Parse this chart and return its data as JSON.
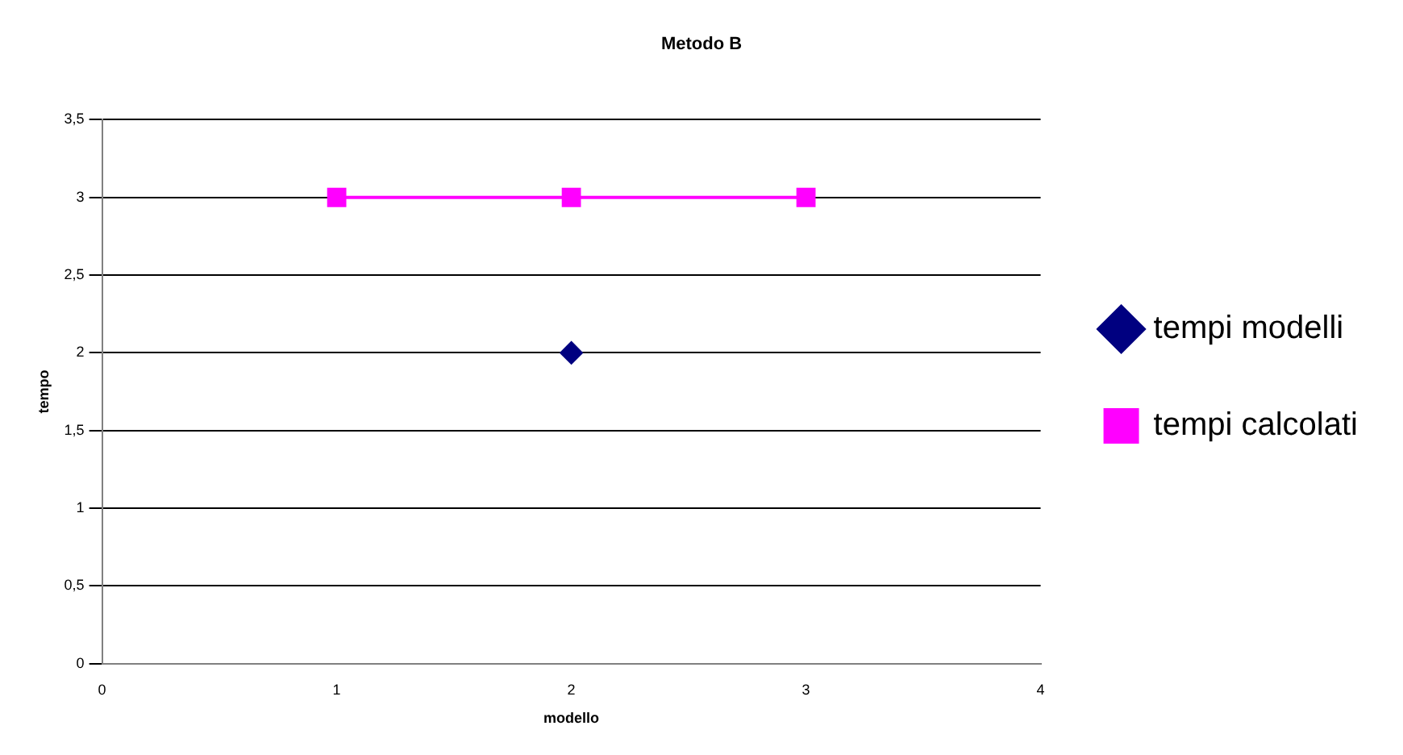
{
  "chart_data": {
    "type": "scatter",
    "title": "Metodo B",
    "xlabel": "modello",
    "ylabel": "tempo",
    "xlim": [
      0,
      4
    ],
    "xticks": [
      0,
      1,
      2,
      3,
      4
    ],
    "ylim": [
      0,
      3.5
    ],
    "yticks": [
      0,
      {
        "value": 0.5,
        "label": "0,5"
      },
      1,
      {
        "value": 1.5,
        "label": "1,5"
      },
      2,
      {
        "value": 2.5,
        "label": "2,5"
      },
      3,
      {
        "value": 3.5,
        "label": "3,5"
      }
    ],
    "grid": "y",
    "legend": "right",
    "series": [
      {
        "name": "tempi modelli",
        "type": "scatter",
        "color": "#000080",
        "marker": "diamond",
        "x": [
          2
        ],
        "values": [
          2
        ]
      },
      {
        "name": "tempi calcolati",
        "type": "line",
        "color": "#ff00ff",
        "marker": "square",
        "line_style": "solid",
        "x": [
          1,
          2,
          3
        ],
        "values": [
          3,
          3,
          3
        ]
      }
    ]
  }
}
